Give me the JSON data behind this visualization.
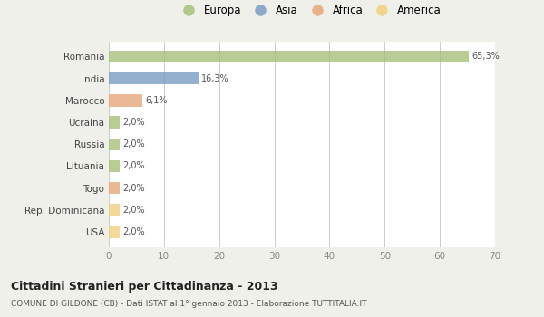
{
  "categories": [
    "Romania",
    "India",
    "Marocco",
    "Ucraina",
    "Russia",
    "Lituania",
    "Togo",
    "Rep. Dominicana",
    "USA"
  ],
  "values": [
    65.3,
    16.3,
    6.1,
    2.0,
    2.0,
    2.0,
    2.0,
    2.0,
    2.0
  ],
  "labels": [
    "65,3%",
    "16,3%",
    "6,1%",
    "2,0%",
    "2,0%",
    "2,0%",
    "2,0%",
    "2,0%",
    "2,0%"
  ],
  "colors": [
    "#a8c07a",
    "#7b9dc2",
    "#e8a87c",
    "#a8c07a",
    "#a8c07a",
    "#a8c07a",
    "#e8a87c",
    "#f0d080",
    "#f0d080"
  ],
  "legend_labels": [
    "Europa",
    "Asia",
    "Africa",
    "America"
  ],
  "legend_colors": [
    "#a8c07a",
    "#7b9dc2",
    "#e8a87c",
    "#f0d080"
  ],
  "xlim": [
    0,
    70
  ],
  "xticks": [
    0,
    10,
    20,
    30,
    40,
    50,
    60,
    70
  ],
  "title": "Cittadini Stranieri per Cittadinanza - 2013",
  "subtitle": "COMUNE DI GILDONE (CB) - Dati ISTAT al 1° gennaio 2013 - Elaborazione TUTTITALIA.IT",
  "background_color": "#f0f0eb",
  "plot_background": "#ffffff",
  "grid_color": "#cccccc",
  "bar_height": 0.55
}
